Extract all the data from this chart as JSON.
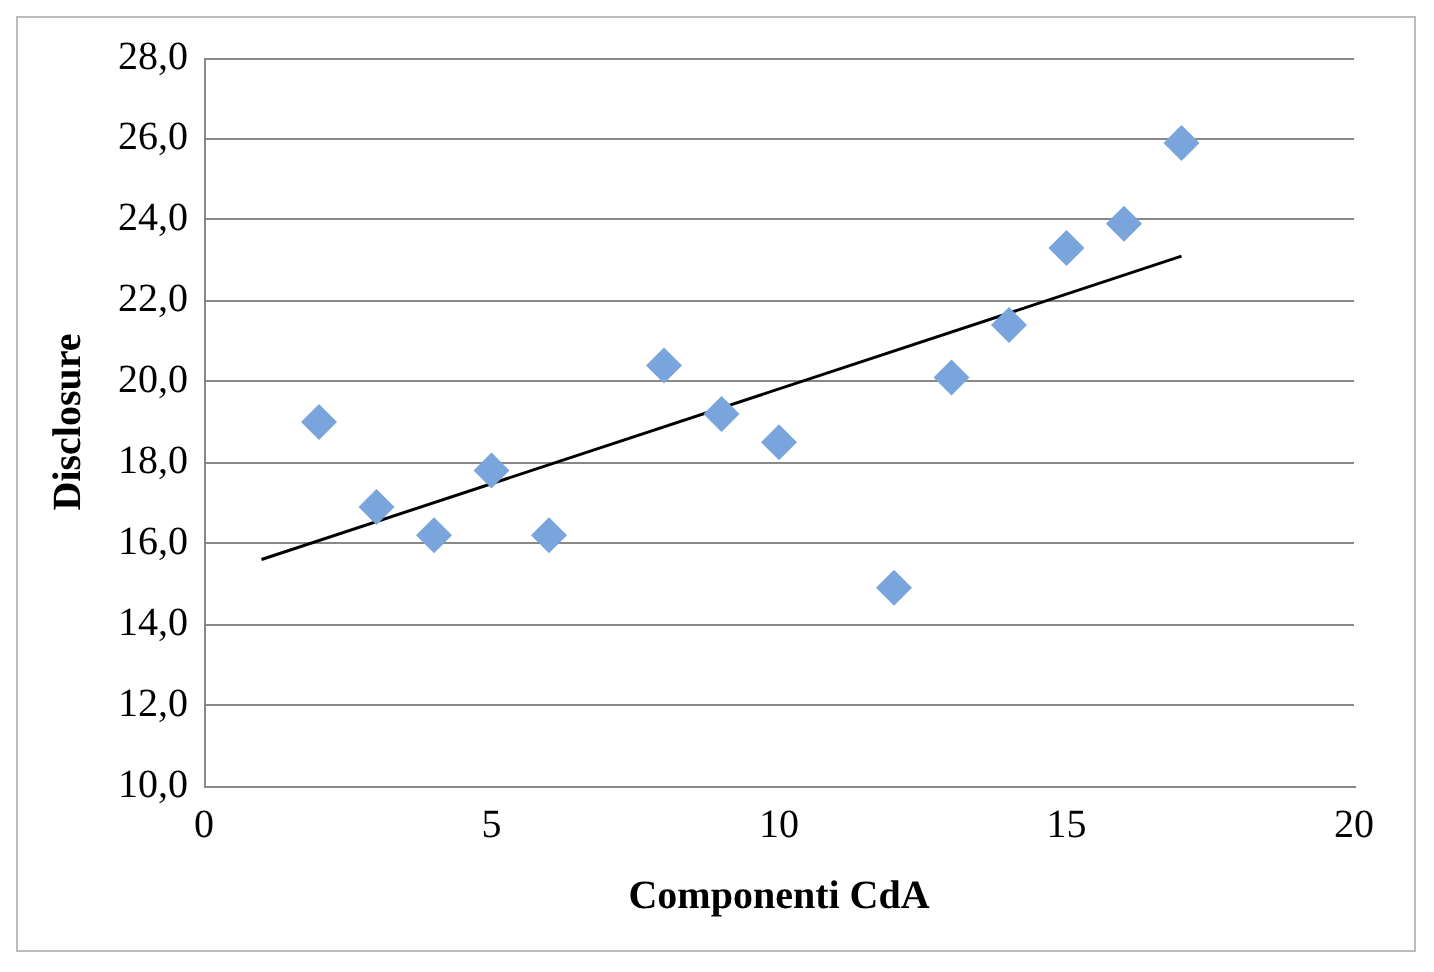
{
  "chart_data": {
    "type": "scatter",
    "xlabel": "Componenti CdA",
    "ylabel": "Disclosure",
    "xlim": [
      0,
      20
    ],
    "xticks": [
      0,
      5,
      10,
      15,
      20
    ],
    "ylim": [
      10,
      28
    ],
    "yticks": [
      {
        "value": 10,
        "label": "10,0"
      },
      {
        "value": 12,
        "label": "12,0"
      },
      {
        "value": 14,
        "label": "14,0"
      },
      {
        "value": 16,
        "label": "16,0"
      },
      {
        "value": 18,
        "label": "18,0"
      },
      {
        "value": 20,
        "label": "20,0"
      },
      {
        "value": 22,
        "label": "22,0"
      },
      {
        "value": 24,
        "label": "24,0"
      },
      {
        "value": 26,
        "label": "26,0"
      },
      {
        "value": 28,
        "label": "28,0"
      }
    ],
    "grid": "y",
    "legend": false,
    "marker": "diamond",
    "series": [
      {
        "type": "scatter",
        "color": "#7aa5dc",
        "x": [
          2,
          3,
          4,
          5,
          6,
          8,
          9,
          10,
          12,
          13,
          14,
          15,
          16,
          17
        ],
        "values": [
          19.0,
          16.9,
          16.2,
          17.8,
          16.2,
          20.4,
          19.2,
          18.5,
          14.9,
          20.1,
          21.4,
          23.3,
          23.9,
          25.9
        ]
      },
      {
        "type": "line",
        "color": "#000000",
        "marker": "none",
        "x": [
          1,
          17
        ],
        "values": [
          15.6,
          23.1
        ]
      }
    ]
  }
}
